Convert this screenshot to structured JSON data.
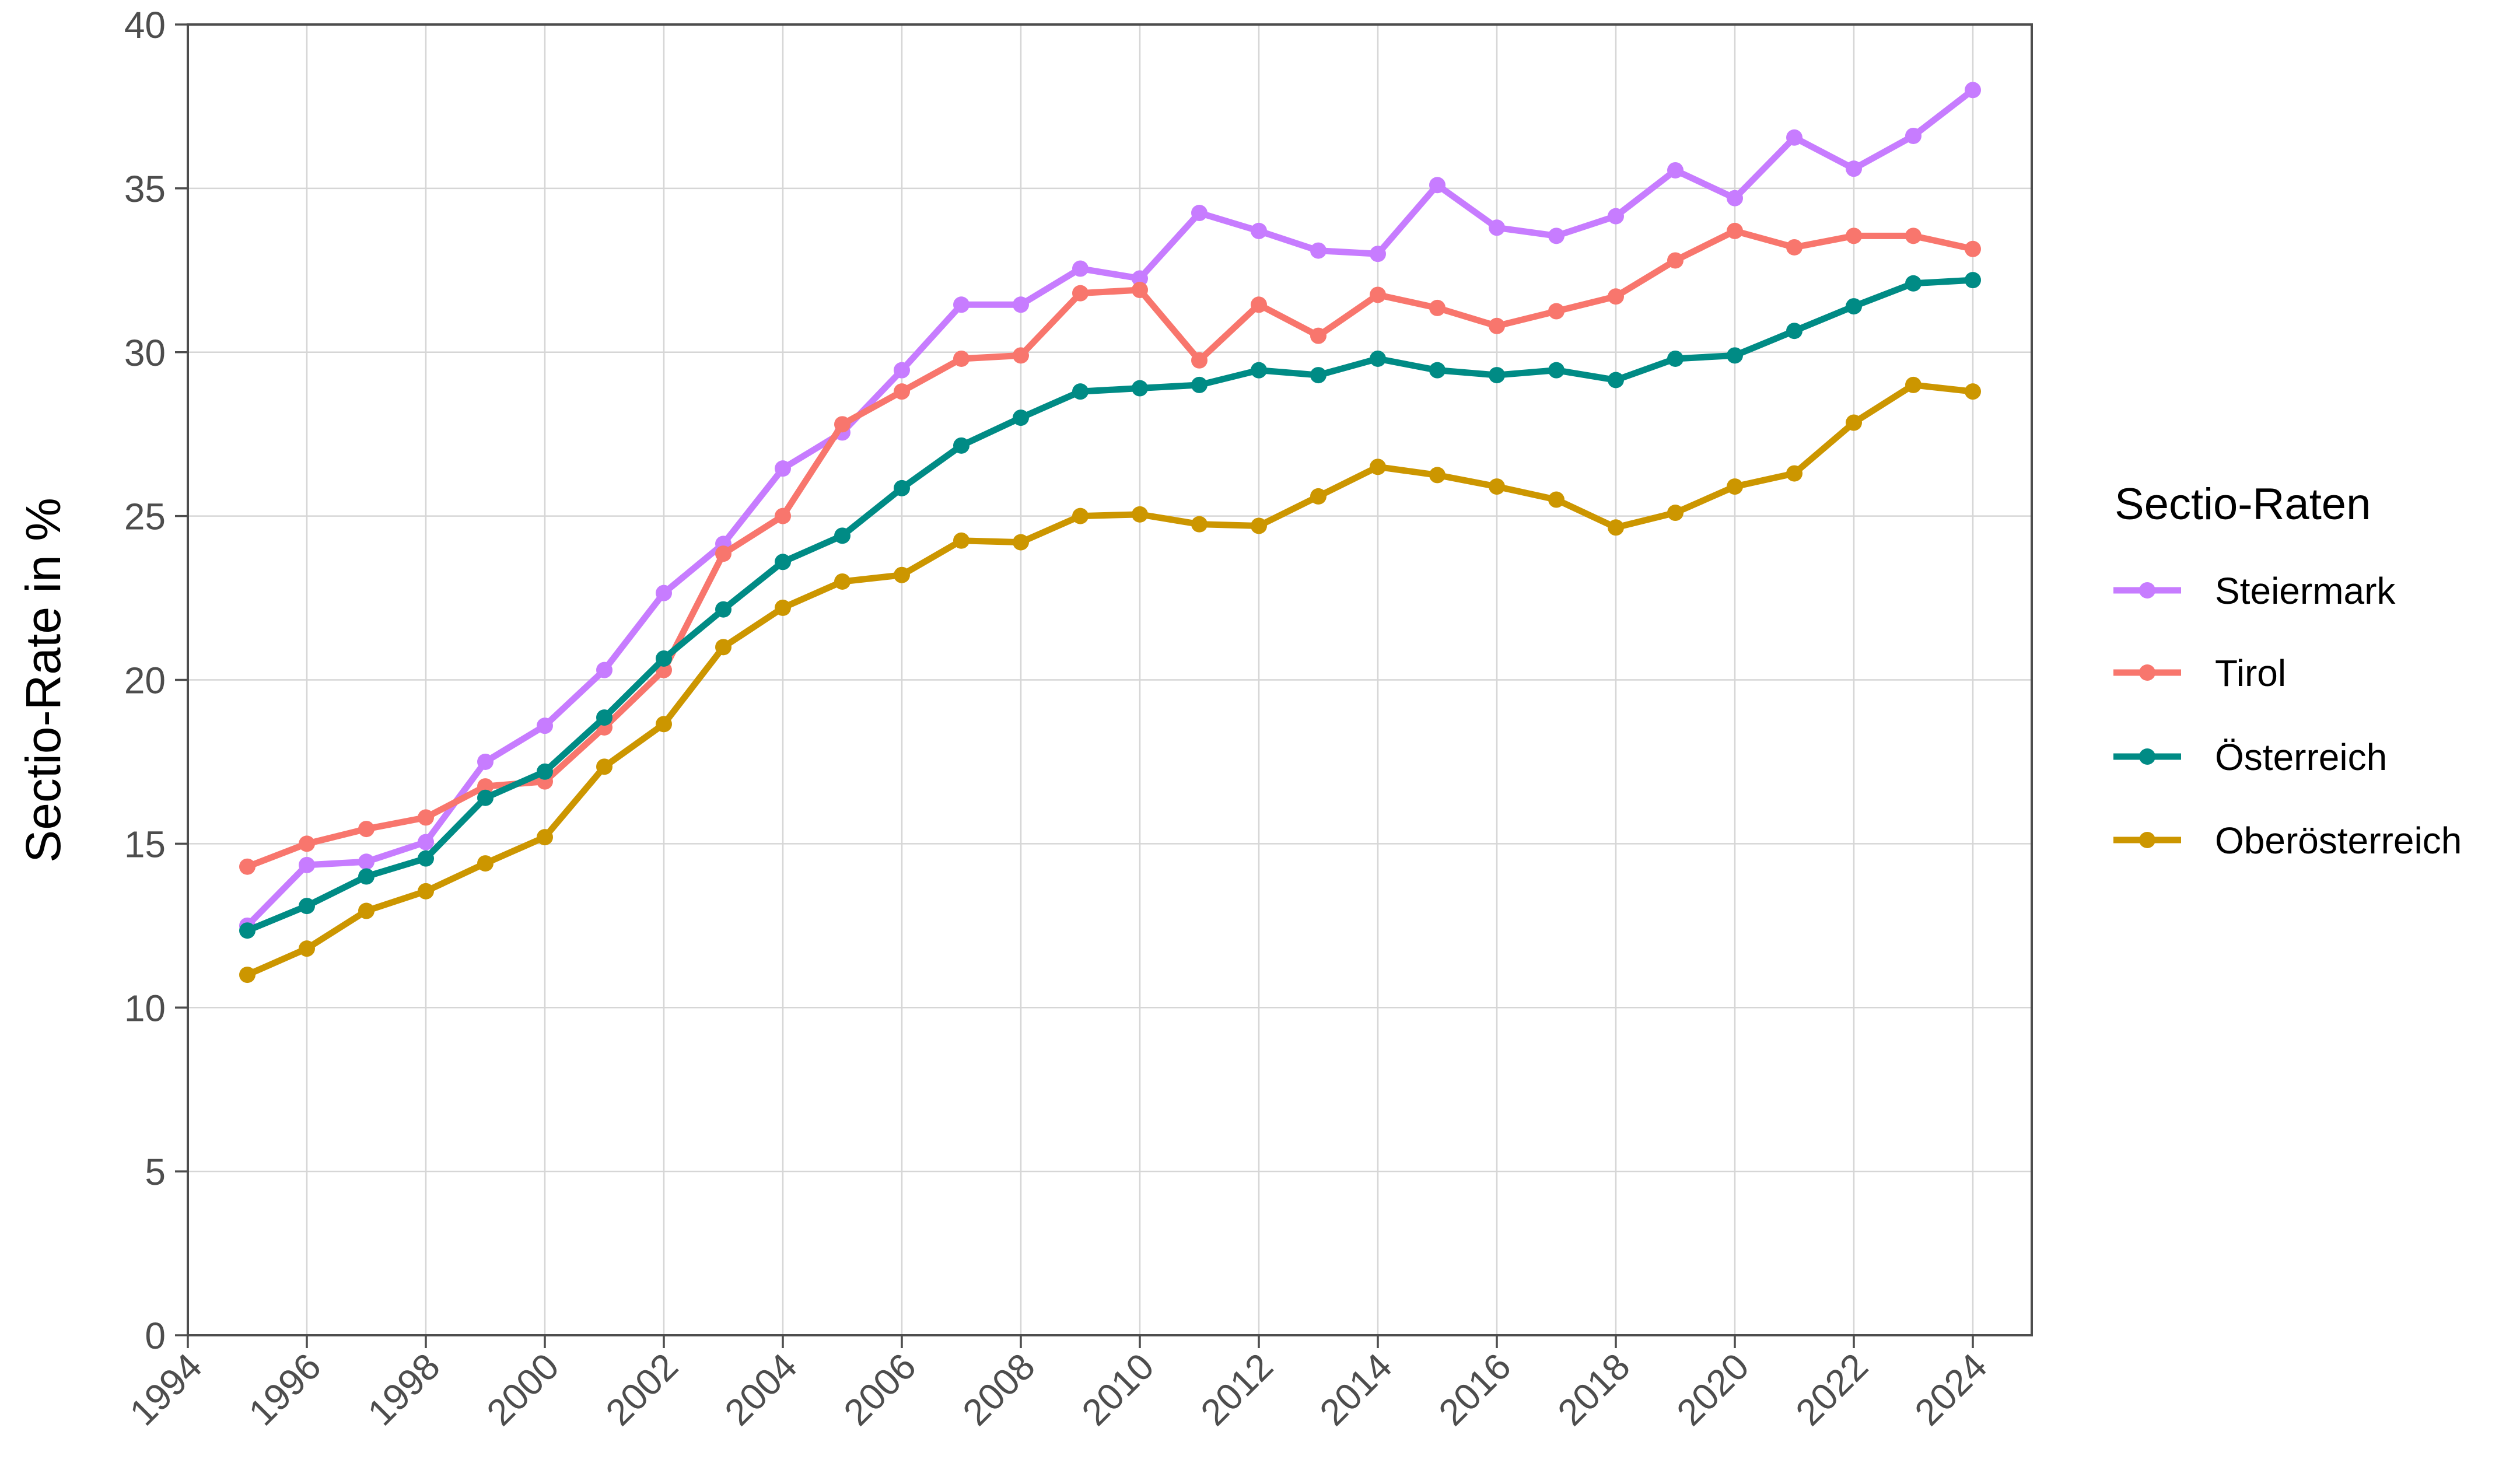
{
  "chart_data": {
    "type": "line",
    "title": "",
    "xlabel": "",
    "ylabel": "Sectio-Rate in %",
    "xlim": [
      1994,
      2025
    ],
    "ylim": [
      0,
      40
    ],
    "x_ticks": [
      1994,
      1996,
      1998,
      2000,
      2002,
      2004,
      2006,
      2008,
      2010,
      2012,
      2014,
      2016,
      2018,
      2020,
      2022,
      2024
    ],
    "y_ticks": [
      0,
      5,
      10,
      15,
      20,
      25,
      30,
      35,
      40
    ],
    "grid": true,
    "legend_position": "right",
    "legend_title": "Sectio-Raten",
    "x": [
      1995,
      1996,
      1997,
      1998,
      1999,
      2000,
      2001,
      2002,
      2003,
      2004,
      2005,
      2006,
      2007,
      2008,
      2009,
      2010,
      2011,
      2012,
      2013,
      2014,
      2015,
      2016,
      2017,
      2018,
      2019,
      2020,
      2021,
      2022,
      2023,
      2024
    ],
    "series": [
      {
        "name": "Steiermark",
        "color": "#C77CFF",
        "values": [
          12.5,
          14.35,
          14.45,
          15.05,
          17.5,
          18.6,
          20.3,
          22.65,
          24.15,
          26.45,
          27.55,
          29.45,
          31.45,
          31.45,
          32.55,
          32.25,
          34.25,
          33.7,
          33.1,
          33.0,
          35.1,
          33.8,
          33.55,
          34.15,
          35.55,
          34.7,
          36.55,
          35.6,
          36.6,
          38.0
        ]
      },
      {
        "name": "Tirol",
        "color": "#F8766D",
        "values": [
          14.3,
          15.0,
          15.45,
          15.8,
          16.75,
          16.9,
          18.55,
          20.3,
          23.85,
          25.0,
          27.8,
          28.8,
          29.8,
          29.9,
          31.8,
          31.9,
          29.75,
          31.45,
          30.5,
          31.75,
          31.35,
          30.8,
          31.25,
          31.7,
          32.8,
          33.7,
          33.2,
          33.55,
          33.55,
          33.15
        ]
      },
      {
        "name": "Österreich",
        "color": "#008B85",
        "values": [
          12.35,
          13.1,
          14.0,
          14.55,
          16.4,
          17.2,
          18.85,
          20.65,
          22.15,
          23.6,
          24.4,
          25.85,
          27.15,
          28.0,
          28.8,
          28.9,
          29.0,
          29.45,
          29.3,
          29.8,
          29.45,
          29.3,
          29.45,
          29.15,
          29.8,
          29.9,
          30.65,
          31.4,
          32.1,
          32.2
        ]
      },
      {
        "name": "Oberösterreich",
        "color": "#CC9600",
        "values": [
          11.0,
          11.8,
          12.95,
          13.55,
          14.4,
          15.2,
          17.35,
          18.65,
          21.0,
          22.2,
          23.0,
          23.2,
          24.25,
          24.2,
          25.0,
          25.05,
          24.75,
          24.7,
          25.6,
          26.5,
          26.25,
          25.9,
          25.5,
          24.65,
          25.1,
          25.9,
          26.3,
          27.85,
          29.0,
          28.8
        ]
      }
    ]
  },
  "legend": {
    "title": "Sectio-Raten",
    "items": [
      {
        "label": "Steiermark",
        "color": "#C77CFF"
      },
      {
        "label": "Tirol",
        "color": "#F8766D"
      },
      {
        "label": "Österreich",
        "color": "#008B85"
      },
      {
        "label": "Oberösterreich",
        "color": "#CC9600"
      }
    ]
  },
  "axes": {
    "y_title": "Sectio-Rate in %"
  }
}
